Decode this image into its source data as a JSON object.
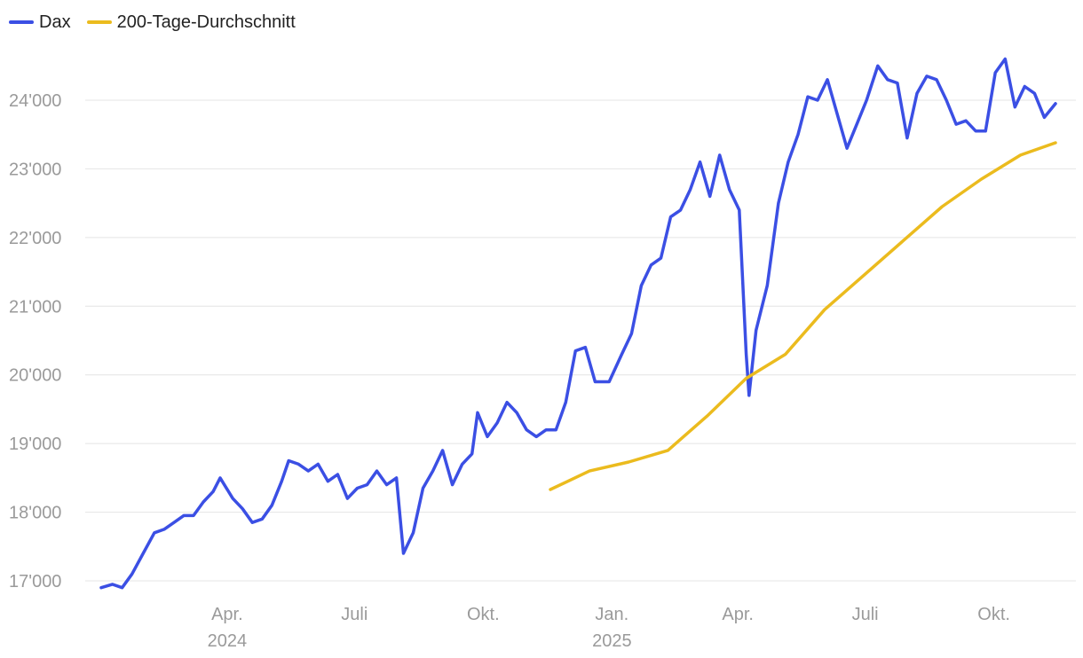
{
  "legend": {
    "series_1": {
      "label": "Dax",
      "color": "#3b4fe4"
    },
    "series_2": {
      "label": "200-Tage-Durchschnitt",
      "color": "#ebbb1e"
    }
  },
  "chart_data": {
    "type": "line",
    "title": "",
    "xlabel": "",
    "ylabel": "",
    "xlim": [
      "2024-01-02",
      "2025-11-14"
    ],
    "ylim": [
      17000,
      24500
    ],
    "grid": true,
    "legend_position": "top-left",
    "y_ticks": [
      17000,
      18000,
      19000,
      20000,
      21000,
      22000,
      23000,
      24000
    ],
    "y_tick_labels": [
      "17'000",
      "18'000",
      "19'000",
      "20'000",
      "21'000",
      "22'000",
      "23'000",
      "24'000"
    ],
    "x_ticks": [
      {
        "date": "2024-04-01",
        "label": "Apr.",
        "year": "2024"
      },
      {
        "date": "2024-07-01",
        "label": "Juli",
        "year": ""
      },
      {
        "date": "2024-10-01",
        "label": "Okt.",
        "year": ""
      },
      {
        "date": "2025-01-01",
        "label": "Jan.",
        "year": "2025"
      },
      {
        "date": "2025-04-01",
        "label": "Apr.",
        "year": ""
      },
      {
        "date": "2025-07-01",
        "label": "Juli",
        "year": ""
      },
      {
        "date": "2025-10-01",
        "label": "Okt.",
        "year": ""
      }
    ],
    "series": [
      {
        "name": "Dax",
        "color": "#3b4fe4",
        "points": [
          [
            "2024-01-02",
            16900
          ],
          [
            "2024-01-10",
            16950
          ],
          [
            "2024-01-17",
            16900
          ],
          [
            "2024-01-24",
            17100
          ],
          [
            "2024-02-01",
            17400
          ],
          [
            "2024-02-09",
            17700
          ],
          [
            "2024-02-16",
            17750
          ],
          [
            "2024-02-23",
            17850
          ],
          [
            "2024-03-01",
            17950
          ],
          [
            "2024-03-08",
            17950
          ],
          [
            "2024-03-15",
            18150
          ],
          [
            "2024-03-22",
            18300
          ],
          [
            "2024-03-27",
            18500
          ],
          [
            "2024-04-05",
            18200
          ],
          [
            "2024-04-12",
            18050
          ],
          [
            "2024-04-19",
            17850
          ],
          [
            "2024-04-26",
            17900
          ],
          [
            "2024-05-03",
            18100
          ],
          [
            "2024-05-10",
            18450
          ],
          [
            "2024-05-15",
            18750
          ],
          [
            "2024-05-22",
            18700
          ],
          [
            "2024-05-29",
            18600
          ],
          [
            "2024-06-05",
            18700
          ],
          [
            "2024-06-12",
            18450
          ],
          [
            "2024-06-19",
            18550
          ],
          [
            "2024-06-26",
            18200
          ],
          [
            "2024-07-03",
            18350
          ],
          [
            "2024-07-10",
            18400
          ],
          [
            "2024-07-17",
            18600
          ],
          [
            "2024-07-24",
            18400
          ],
          [
            "2024-07-31",
            18500
          ],
          [
            "2024-08-05",
            17400
          ],
          [
            "2024-08-12",
            17700
          ],
          [
            "2024-08-19",
            18350
          ],
          [
            "2024-08-26",
            18600
          ],
          [
            "2024-09-02",
            18900
          ],
          [
            "2024-09-09",
            18400
          ],
          [
            "2024-09-16",
            18700
          ],
          [
            "2024-09-23",
            18850
          ],
          [
            "2024-09-27",
            19450
          ],
          [
            "2024-10-04",
            19100
          ],
          [
            "2024-10-11",
            19300
          ],
          [
            "2024-10-18",
            19600
          ],
          [
            "2024-10-25",
            19450
          ],
          [
            "2024-11-01",
            19200
          ],
          [
            "2024-11-08",
            19100
          ],
          [
            "2024-11-15",
            19200
          ],
          [
            "2024-11-22",
            19200
          ],
          [
            "2024-11-29",
            19600
          ],
          [
            "2024-12-06",
            20350
          ],
          [
            "2024-12-13",
            20400
          ],
          [
            "2024-12-20",
            19900
          ],
          [
            "2024-12-30",
            19900
          ],
          [
            "2025-01-08",
            20300
          ],
          [
            "2025-01-15",
            20600
          ],
          [
            "2025-01-22",
            21300
          ],
          [
            "2025-01-29",
            21600
          ],
          [
            "2025-02-05",
            21700
          ],
          [
            "2025-02-12",
            22300
          ],
          [
            "2025-02-19",
            22400
          ],
          [
            "2025-02-26",
            22700
          ],
          [
            "2025-03-05",
            23100
          ],
          [
            "2025-03-12",
            22600
          ],
          [
            "2025-03-19",
            23200
          ],
          [
            "2025-03-26",
            22700
          ],
          [
            "2025-04-02",
            22400
          ],
          [
            "2025-04-07",
            20300
          ],
          [
            "2025-04-09",
            19700
          ],
          [
            "2025-04-14",
            20650
          ],
          [
            "2025-04-22",
            21300
          ],
          [
            "2025-04-30",
            22500
          ],
          [
            "2025-05-07",
            23100
          ],
          [
            "2025-05-14",
            23500
          ],
          [
            "2025-05-21",
            24050
          ],
          [
            "2025-05-28",
            24000
          ],
          [
            "2025-06-04",
            24300
          ],
          [
            "2025-06-11",
            23800
          ],
          [
            "2025-06-18",
            23300
          ],
          [
            "2025-06-25",
            23650
          ],
          [
            "2025-07-02",
            24000
          ],
          [
            "2025-07-10",
            24500
          ],
          [
            "2025-07-17",
            24300
          ],
          [
            "2025-07-24",
            24250
          ],
          [
            "2025-07-31",
            23450
          ],
          [
            "2025-08-07",
            24100
          ],
          [
            "2025-08-14",
            24350
          ],
          [
            "2025-08-21",
            24300
          ],
          [
            "2025-08-28",
            24000
          ],
          [
            "2025-09-04",
            23650
          ],
          [
            "2025-09-11",
            23700
          ],
          [
            "2025-09-18",
            23550
          ],
          [
            "2025-09-25",
            23550
          ],
          [
            "2025-10-02",
            24400
          ],
          [
            "2025-10-09",
            24600
          ],
          [
            "2025-10-16",
            23900
          ],
          [
            "2025-10-23",
            24200
          ],
          [
            "2025-10-30",
            24100
          ],
          [
            "2025-11-06",
            23750
          ],
          [
            "2025-11-14",
            23950
          ]
        ]
      },
      {
        "name": "200-Tage-Durchschnitt",
        "color": "#ebbb1e",
        "points": [
          [
            "2024-11-18",
            18330
          ],
          [
            "2024-12-16",
            18600
          ],
          [
            "2025-01-13",
            18730
          ],
          [
            "2025-02-10",
            18900
          ],
          [
            "2025-03-10",
            19400
          ],
          [
            "2025-04-07",
            19950
          ],
          [
            "2025-05-05",
            20300
          ],
          [
            "2025-06-02",
            20950
          ],
          [
            "2025-06-30",
            21450
          ],
          [
            "2025-07-28",
            21950
          ],
          [
            "2025-08-25",
            22450
          ],
          [
            "2025-09-22",
            22850
          ],
          [
            "2025-10-20",
            23200
          ],
          [
            "2025-11-14",
            23380
          ]
        ]
      }
    ]
  }
}
